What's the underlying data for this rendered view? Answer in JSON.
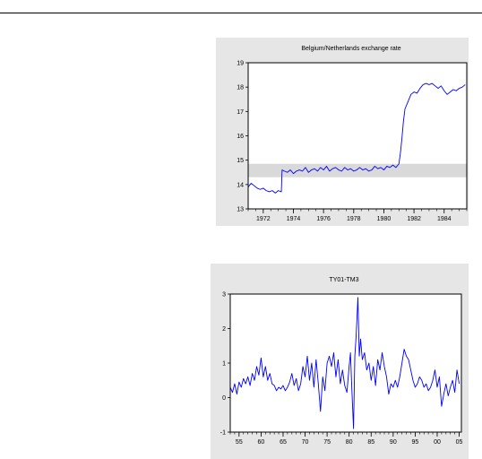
{
  "chart_data": [
    {
      "type": "line",
      "title": "Belgium/Netherlands exchange rate",
      "xlabel": "",
      "ylabel": "",
      "xlim": [
        1971,
        1985.5
      ],
      "ylim": [
        13,
        19
      ],
      "yticks": [
        13,
        14,
        15,
        16,
        17,
        18,
        19
      ],
      "xtick_labels": [
        "1972",
        "1974",
        "1976",
        "1978",
        "1980",
        "1982",
        "1984"
      ],
      "xtick_values": [
        1972,
        1974,
        1976,
        1978,
        1980,
        1982,
        1984
      ],
      "grid": false,
      "band": {
        "y_low": 14.3,
        "y_high": 14.85,
        "color": "#d9d9d9"
      },
      "line_color": "#0000ff",
      "series": [
        {
          "x": [
            1971.0,
            1971.2,
            1971.4,
            1971.6,
            1971.8,
            1972.0,
            1972.2,
            1972.4,
            1972.6,
            1972.8,
            1973.0,
            1973.2,
            1973.25,
            1973.4,
            1973.6,
            1973.8,
            1974.0,
            1974.2,
            1974.4,
            1974.6,
            1974.8,
            1975.0,
            1975.2,
            1975.4,
            1975.6,
            1975.8,
            1976.0,
            1976.2,
            1976.4,
            1976.6,
            1976.8,
            1977.0,
            1977.2,
            1977.4,
            1977.6,
            1977.8,
            1978.0,
            1978.2,
            1978.4,
            1978.6,
            1978.8,
            1979.0,
            1979.2,
            1979.4,
            1979.6,
            1979.8,
            1980.0,
            1980.2,
            1980.4,
            1980.6,
            1980.8,
            1981.0,
            1981.1,
            1981.2,
            1981.3,
            1981.4,
            1981.6,
            1981.8,
            1982.0,
            1982.2,
            1982.4,
            1982.6,
            1982.8,
            1983.0,
            1983.2,
            1983.4,
            1983.6,
            1983.8,
            1984.0,
            1984.2,
            1984.4,
            1984.6,
            1984.8,
            1985.0,
            1985.2,
            1985.4
          ],
          "y": [
            13.9,
            14.05,
            13.95,
            13.85,
            13.8,
            13.85,
            13.75,
            13.7,
            13.75,
            13.65,
            13.75,
            13.7,
            14.6,
            14.55,
            14.5,
            14.6,
            14.45,
            14.55,
            14.6,
            14.55,
            14.7,
            14.5,
            14.6,
            14.65,
            14.55,
            14.7,
            14.6,
            14.75,
            14.55,
            14.65,
            14.7,
            14.6,
            14.55,
            14.7,
            14.6,
            14.65,
            14.55,
            14.6,
            14.7,
            14.6,
            14.65,
            14.55,
            14.6,
            14.75,
            14.65,
            14.7,
            14.6,
            14.75,
            14.7,
            14.8,
            14.7,
            14.85,
            15.3,
            15.9,
            16.6,
            17.1,
            17.4,
            17.7,
            17.8,
            17.75,
            17.95,
            18.1,
            18.15,
            18.1,
            18.15,
            18.05,
            17.95,
            18.05,
            17.85,
            17.7,
            17.8,
            17.9,
            17.85,
            17.95,
            18.0,
            18.1
          ]
        }
      ]
    },
    {
      "type": "line",
      "title": "TY01-TM3",
      "xlabel": "",
      "ylabel": "",
      "xlim": [
        1953,
        2005.5
      ],
      "ylim": [
        -1,
        3
      ],
      "yticks": [
        -1,
        0,
        1,
        2,
        3
      ],
      "xtick_labels": [
        "55",
        "60",
        "65",
        "70",
        "75",
        "80",
        "85",
        "90",
        "95",
        "00",
        "05"
      ],
      "xtick_values": [
        1955,
        1960,
        1965,
        1970,
        1975,
        1980,
        1985,
        1990,
        1995,
        2000,
        2005
      ],
      "grid": false,
      "line_color": "#0000ff",
      "series": [
        {
          "x": [
            1953.0,
            1953.5,
            1954.0,
            1954.5,
            1955.0,
            1955.5,
            1956.0,
            1956.5,
            1957.0,
            1957.5,
            1958.0,
            1958.5,
            1959.0,
            1959.5,
            1960.0,
            1960.5,
            1961.0,
            1961.5,
            1962.0,
            1962.5,
            1963.0,
            1963.5,
            1964.0,
            1964.5,
            1965.0,
            1965.5,
            1966.0,
            1966.5,
            1967.0,
            1967.5,
            1968.0,
            1968.5,
            1969.0,
            1969.5,
            1970.0,
            1970.5,
            1971.0,
            1971.5,
            1972.0,
            1972.5,
            1973.0,
            1973.5,
            1974.0,
            1974.5,
            1975.0,
            1975.5,
            1976.0,
            1976.5,
            1977.0,
            1977.5,
            1978.0,
            1978.5,
            1979.0,
            1979.5,
            1980.0,
            1980.3,
            1980.6,
            1981.0,
            1981.3,
            1981.6,
            1982.0,
            1982.3,
            1982.6,
            1983.0,
            1983.5,
            1984.0,
            1984.5,
            1985.0,
            1985.5,
            1986.0,
            1986.5,
            1987.0,
            1987.5,
            1988.0,
            1988.5,
            1989.0,
            1989.5,
            1990.0,
            1990.5,
            1991.0,
            1991.5,
            1992.0,
            1992.5,
            1993.0,
            1993.5,
            1994.0,
            1994.5,
            1995.0,
            1995.5,
            1996.0,
            1996.5,
            1997.0,
            1997.5,
            1998.0,
            1998.5,
            1999.0,
            1999.5,
            2000.0,
            2000.5,
            2001.0,
            2001.5,
            2002.0,
            2002.5,
            2003.0,
            2003.5,
            2004.0,
            2004.5,
            2005.0
          ],
          "y": [
            0.3,
            0.15,
            0.4,
            0.1,
            0.45,
            0.3,
            0.55,
            0.4,
            0.6,
            0.35,
            0.7,
            0.5,
            0.9,
            0.65,
            1.15,
            0.6,
            0.9,
            0.5,
            0.7,
            0.4,
            0.35,
            0.2,
            0.3,
            0.25,
            0.35,
            0.2,
            0.3,
            0.45,
            0.7,
            0.35,
            0.55,
            0.2,
            0.4,
            0.9,
            0.6,
            1.2,
            0.5,
            1.0,
            0.3,
            1.1,
            0.4,
            -0.4,
            0.6,
            0.2,
            1.0,
            1.2,
            0.9,
            1.3,
            0.6,
            1.1,
            0.4,
            0.8,
            0.35,
            0.15,
            0.9,
            1.3,
            0.3,
            -0.9,
            1.2,
            1.8,
            2.9,
            1.2,
            1.7,
            1.1,
            1.3,
            0.8,
            1.0,
            0.5,
            0.9,
            0.35,
            1.1,
            0.8,
            1.3,
            0.9,
            0.6,
            0.1,
            0.4,
            0.3,
            0.5,
            0.3,
            0.6,
            1.0,
            1.4,
            1.2,
            1.1,
            0.8,
            0.5,
            0.3,
            0.4,
            0.6,
            0.5,
            0.3,
            0.4,
            0.2,
            0.3,
            0.5,
            0.8,
            0.3,
            0.6,
            -0.25,
            0.1,
            0.4,
            0.05,
            0.3,
            0.5,
            0.15,
            0.8,
            0.4
          ]
        }
      ]
    }
  ]
}
